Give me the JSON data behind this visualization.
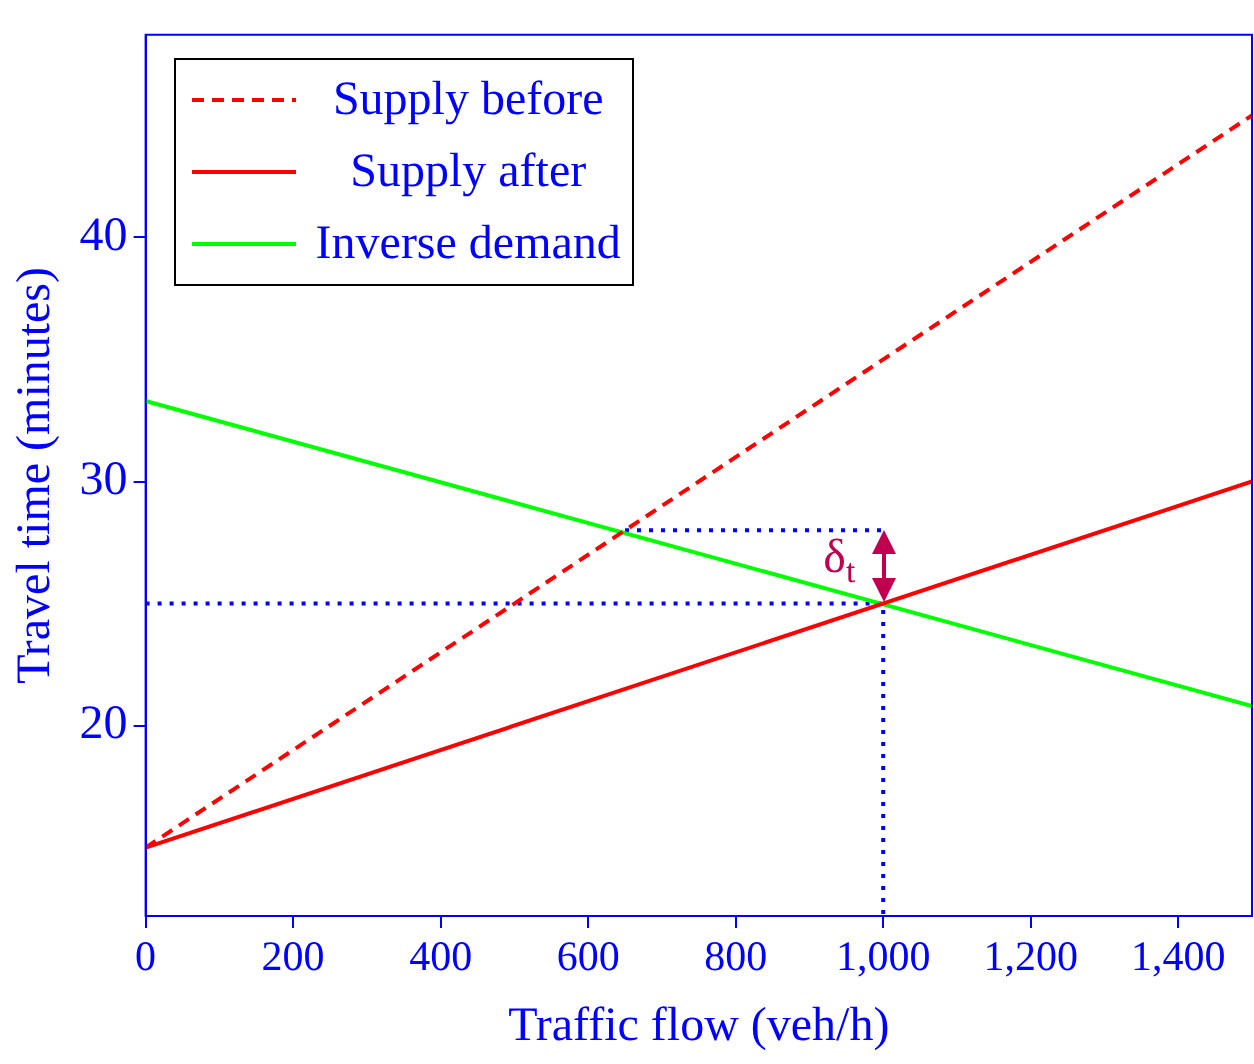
{
  "chart_data": {
    "type": "line",
    "xlabel": "Traffic flow (veh/h)",
    "ylabel": "Travel time (minutes)",
    "xlim": [
      0,
      1500
    ],
    "ylim": [
      12.2,
      48.3
    ],
    "xticks": [
      0,
      200,
      400,
      600,
      800,
      {
        "value": 1000,
        "label": "1,000"
      },
      {
        "value": 1200,
        "label": "1,200"
      },
      {
        "value": 1400,
        "label": "1,400"
      }
    ],
    "yticks": [
      20,
      30,
      40
    ],
    "grid": false,
    "legend": "top left",
    "marker": "none",
    "series": [
      {
        "name": "Supply before",
        "color": "#ff0000",
        "line_style": "dashed",
        "x": [
          0,
          1500
        ],
        "values": [
          15,
          45
        ]
      },
      {
        "name": "Supply after",
        "color": "#ff0000",
        "line_style": "solid",
        "x": [
          0,
          1500
        ],
        "values": [
          15,
          30
        ]
      },
      {
        "name": "Inverse demand",
        "color": "#00ff00",
        "line_style": "solid",
        "x": [
          0,
          1500
        ],
        "values": [
          33.3,
          20.8
        ]
      },
      {
        "color": "#0000ff",
        "line_style": "dotted",
        "x": [
          0,
          1000,
          1000
        ],
        "values": [
          25,
          25,
          12.2
        ]
      },
      {
        "color": "#0000ff",
        "line_style": "dotted",
        "x": [
          650,
          1000
        ],
        "values": [
          28,
          28
        ]
      }
    ],
    "annotations": [
      {
        "text": "δ$_{t}$",
        "x": 1000,
        "y": 26.5
      }
    ]
  }
}
